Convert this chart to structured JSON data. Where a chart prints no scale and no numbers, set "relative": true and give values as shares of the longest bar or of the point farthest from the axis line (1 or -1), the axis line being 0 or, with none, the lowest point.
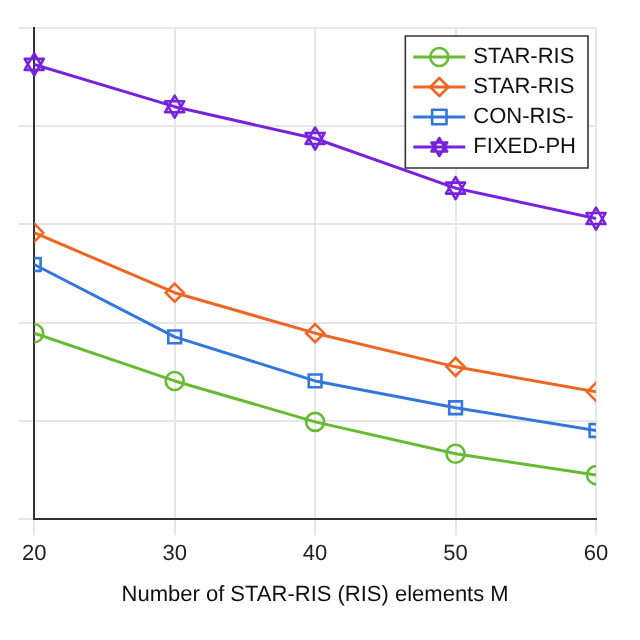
{
  "chart_data": {
    "type": "line",
    "xlabel": "Number of STAR-RIS (RIS) elements M",
    "x": [
      20,
      30,
      40,
      50,
      60
    ],
    "xlim": [
      20,
      60
    ],
    "xticks": [
      20,
      30,
      40,
      50,
      60
    ],
    "relative": true,
    "grid": true,
    "legend": "top right",
    "series": [
      {
        "name": "STAR-RIS",
        "color": "#66bb33",
        "marker": "circle",
        "values": [
          0.409,
          0.304,
          0.214,
          0.144,
          0.097
        ]
      },
      {
        "name": "STAR-RIS",
        "color": "#ee6622",
        "marker": "diamond",
        "values": [
          0.63,
          0.498,
          0.409,
          0.335,
          0.28
        ]
      },
      {
        "name": "CON-RIS-",
        "color": "#3377dd",
        "marker": "square",
        "values": [
          0.56,
          0.401,
          0.304,
          0.245,
          0.195
        ]
      },
      {
        "name": "FIXED-PH",
        "color": "#7722dd",
        "marker": "star",
        "values": [
          1,
          0.907,
          0.837,
          0.728,
          0.661
        ]
      }
    ]
  }
}
